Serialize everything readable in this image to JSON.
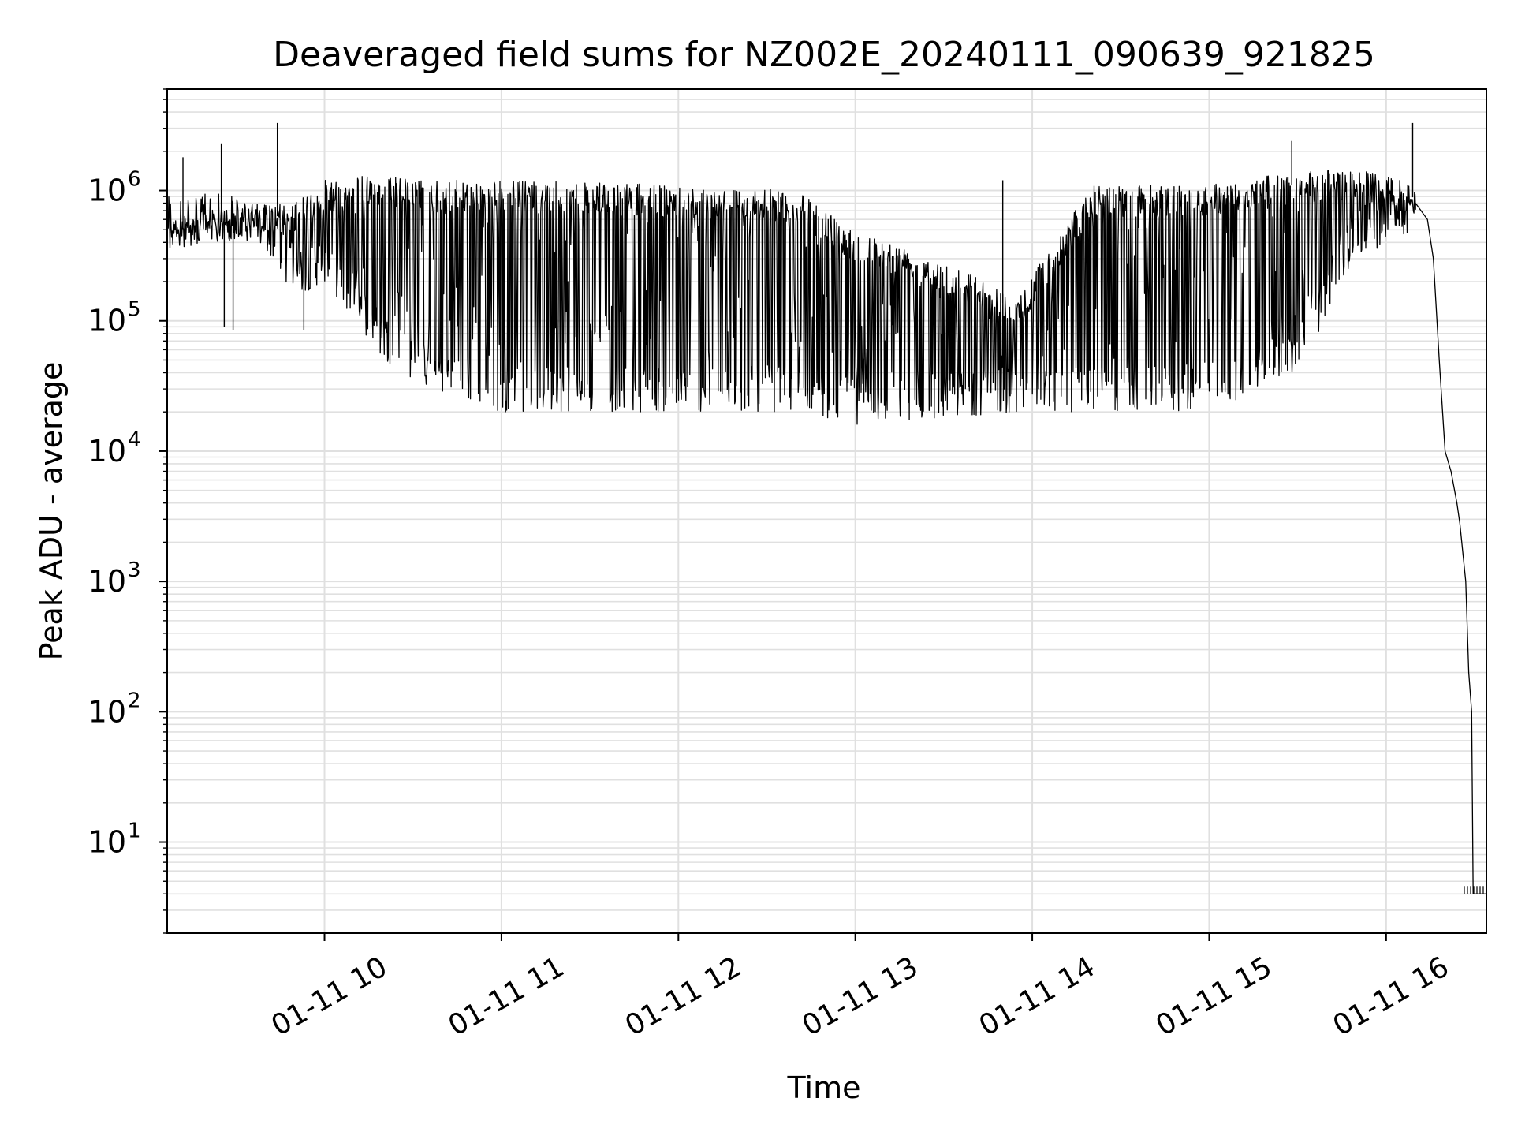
{
  "chart_data": {
    "type": "line",
    "title": "Deaveraged field sums for NZ002E_20240111_090639_921825",
    "xlabel": "Time",
    "ylabel": "Peak ADU - average",
    "yscale": "log",
    "ylim": [
      2,
      6000000
    ],
    "xlim": [
      "2024-01-11 09:06:39",
      "2024-01-11 16:34:00"
    ],
    "grid": true,
    "line_color": "#000000",
    "grid_color": "#e0e0e0",
    "x_ticks": [
      {
        "t": "2024-01-11 10:00",
        "label": "01-11 10"
      },
      {
        "t": "2024-01-11 11:00",
        "label": "01-11 11"
      },
      {
        "t": "2024-01-11 12:00",
        "label": "01-11 12"
      },
      {
        "t": "2024-01-11 13:00",
        "label": "01-11 13"
      },
      {
        "t": "2024-01-11 14:00",
        "label": "01-11 14"
      },
      {
        "t": "2024-01-11 15:00",
        "label": "01-11 15"
      },
      {
        "t": "2024-01-11 16:00",
        "label": "01-11 16"
      }
    ],
    "y_ticks": [
      {
        "value": 10,
        "base": "10",
        "exp": "1"
      },
      {
        "value": 100,
        "base": "10",
        "exp": "2"
      },
      {
        "value": 1000,
        "base": "10",
        "exp": "3"
      },
      {
        "value": 10000,
        "base": "10",
        "exp": "4"
      },
      {
        "value": 100000,
        "base": "10",
        "exp": "5"
      },
      {
        "value": 1000000,
        "base": "10",
        "exp": "6"
      }
    ],
    "series": [
      {
        "style": "noisy-envelope",
        "envelope": [
          {
            "t": "2024-01-11 09:07",
            "upper": 600000,
            "lower": 400000
          },
          {
            "t": "2024-01-11 09:20",
            "upper": 700000,
            "lower": 450000
          },
          {
            "t": "2024-01-11 09:40",
            "upper": 800000,
            "lower": 350000
          },
          {
            "t": "2024-01-11 09:50",
            "upper": 800000,
            "lower": 150000
          },
          {
            "t": "2024-01-11 10:00",
            "upper": 1200000,
            "lower": 200000
          },
          {
            "t": "2024-01-11 10:10",
            "upper": 1300000,
            "lower": 100000
          },
          {
            "t": "2024-01-11 10:20",
            "upper": 1300000,
            "lower": 50000
          },
          {
            "t": "2024-01-11 10:35",
            "upper": 1200000,
            "lower": 30000
          },
          {
            "t": "2024-01-11 11:00",
            "upper": 1200000,
            "lower": 20000
          },
          {
            "t": "2024-01-11 12:00",
            "upper": 1100000,
            "lower": 20000
          },
          {
            "t": "2024-01-11 12:40",
            "upper": 1000000,
            "lower": 20000
          },
          {
            "t": "2024-01-11 13:00",
            "upper": 500000,
            "lower": 16000
          },
          {
            "t": "2024-01-11 13:30",
            "upper": 300000,
            "lower": 18000
          },
          {
            "t": "2024-01-11 13:55",
            "upper": 150000,
            "lower": 20000
          },
          {
            "t": "2024-01-11 14:20",
            "upper": 1100000,
            "lower": 20000
          },
          {
            "t": "2024-01-11 14:50",
            "upper": 1100000,
            "lower": 20000
          },
          {
            "t": "2024-01-11 15:10",
            "upper": 1200000,
            "lower": 25000
          },
          {
            "t": "2024-01-11 15:30",
            "upper": 1400000,
            "lower": 40000
          },
          {
            "t": "2024-01-11 15:50",
            "upper": 1500000,
            "lower": 300000
          },
          {
            "t": "2024-01-11 16:10",
            "upper": 1100000,
            "lower": 500000
          }
        ],
        "tail": [
          {
            "t": "2024-01-11 16:10",
            "value": 800000
          },
          {
            "t": "2024-01-11 16:14",
            "value": 600000
          },
          {
            "t": "2024-01-11 16:16",
            "value": 300000
          },
          {
            "t": "2024-01-11 16:18",
            "value": 50000
          },
          {
            "t": "2024-01-11 16:20",
            "value": 10000
          },
          {
            "t": "2024-01-11 16:22",
            "value": 7000
          },
          {
            "t": "2024-01-11 16:24",
            "value": 4000
          },
          {
            "t": "2024-01-11 16:25",
            "value": 2800
          },
          {
            "t": "2024-01-11 16:27",
            "value": 1000
          },
          {
            "t": "2024-01-11 16:28",
            "value": 200
          },
          {
            "t": "2024-01-11 16:29",
            "value": 100
          },
          {
            "t": "2024-01-11 16:29.5",
            "value": 4
          },
          {
            "t": "2024-01-11 16:34",
            "value": 4
          }
        ],
        "spikes": [
          {
            "t": "2024-01-11 09:12",
            "value": 1800000
          },
          {
            "t": "2024-01-11 09:25",
            "value": 2300000
          },
          {
            "t": "2024-01-11 09:26",
            "value": 90000
          },
          {
            "t": "2024-01-11 09:29",
            "value": 85000
          },
          {
            "t": "2024-01-11 09:44",
            "value": 3300000
          },
          {
            "t": "2024-01-11 09:53",
            "value": 85000
          },
          {
            "t": "2024-01-11 13:50",
            "value": 1200000
          },
          {
            "t": "2024-01-11 15:28",
            "value": 2400000
          },
          {
            "t": "2024-01-11 16:09",
            "value": 3300000
          }
        ]
      }
    ]
  }
}
